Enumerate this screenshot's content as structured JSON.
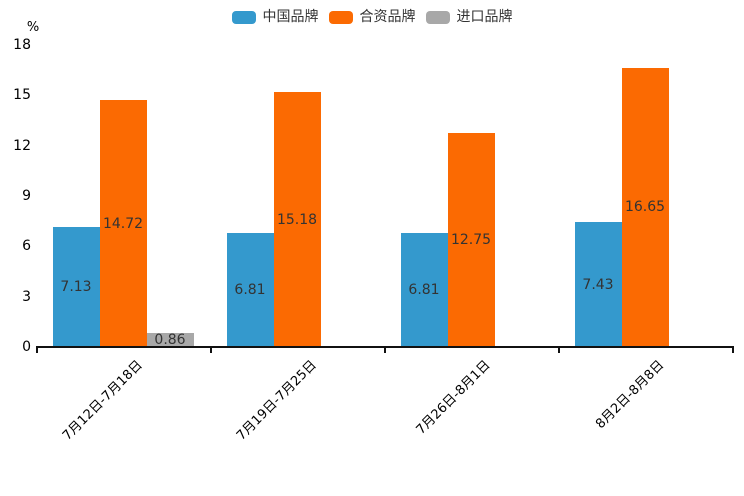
{
  "page": {
    "background": "#ffffff"
  },
  "chart_data": {
    "type": "bar",
    "title": "",
    "ylabel": "%",
    "categories": [
      "7月12日-7月18日",
      "7月19日-7月25日",
      "7月26日-8月1日",
      "8月2日-8月8日"
    ],
    "series": [
      {
        "name": "中国品牌",
        "key": "china-brand",
        "color": "#3499CD",
        "values": [
          7.13,
          6.81,
          6.81,
          7.43
        ]
      },
      {
        "name": "合资品牌",
        "key": "joint-venture-brand",
        "color": "#FB6A02",
        "values": [
          14.72,
          15.18,
          12.75,
          16.65
        ]
      },
      {
        "name": "进口品牌",
        "key": "import-brand",
        "color": "#A8A8A8",
        "values": [
          0.86,
          null,
          null,
          null
        ]
      }
    ],
    "ylim": [
      0,
      18
    ],
    "yticks": [
      0,
      3,
      6,
      9,
      12,
      15,
      18
    ],
    "grid": false,
    "legend_position": "top",
    "value_labels": true,
    "value_label_color": "#333333",
    "axis_color": "#111111"
  }
}
